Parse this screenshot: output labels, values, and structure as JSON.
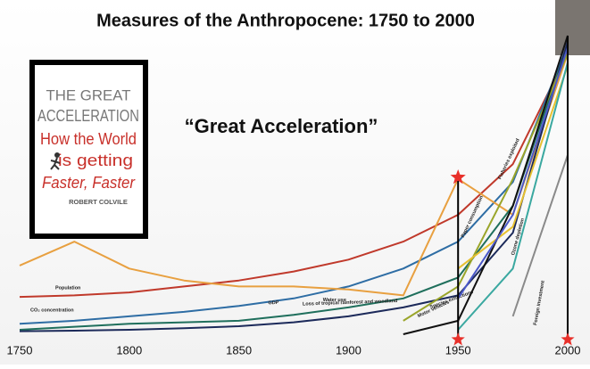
{
  "chart_data": {
    "type": "line",
    "title": "Measures of the Anthropocene:  1750 to 2000",
    "annotation": "“Great Acceleration”",
    "book": {
      "title_1": "THE GREAT",
      "title_2": "ACCELERATION",
      "subtitle_1": "How the World",
      "subtitle_2": "is getting",
      "subtitle_3": "Faster, Faster",
      "author": "ROBERT COLVILE"
    },
    "x": [
      1750,
      1775,
      1800,
      1825,
      1850,
      1875,
      1900,
      1925,
      1950,
      1975,
      2000
    ],
    "xlim": [
      1750,
      2000
    ],
    "xticks": [
      1750,
      1800,
      1850,
      1900,
      1950,
      2000
    ],
    "ylim": [
      0,
      100
    ],
    "series": [
      {
        "name": "Population",
        "color": "#c0392b",
        "values": [
          12.5,
          13,
          14,
          16,
          18,
          21,
          25,
          31,
          40,
          57,
          94
        ]
      },
      {
        "name": "CO₂ concentration",
        "color": "#2e6da4",
        "values": [
          3.5,
          4.5,
          6,
          7.5,
          9.5,
          12,
          16,
          22,
          31,
          51,
          97
        ]
      },
      {
        "name": "Water use",
        "color": "#e8a040",
        "values": [
          23,
          31,
          22,
          18,
          16,
          16,
          15,
          13,
          52,
          40,
          94
        ]
      },
      {
        "name": "Loss of tropical rainforest and woodland",
        "color": "#1f6f5c",
        "values": [
          1.5,
          2.5,
          3.5,
          4,
          4.5,
          6.5,
          9,
          12,
          19,
          43,
          97
        ]
      },
      {
        "name": "GDP",
        "color": "#1c2a5a",
        "values": [
          1,
          1.2,
          1.5,
          2,
          2.7,
          4,
          6,
          9,
          13,
          34,
          98
        ]
      },
      {
        "name": "Species extinctions",
        "color": "#9aa52a",
        "values": [
          null,
          null,
          null,
          null,
          null,
          null,
          null,
          4.5,
          16,
          52,
          94
        ]
      },
      {
        "name": "Motor vehicles",
        "color": "#111111",
        "values": [
          null,
          null,
          null,
          null,
          null,
          null,
          null,
          0,
          4.5,
          43,
          100
        ]
      },
      {
        "name": "Paper consumption",
        "color": "#e6c030",
        "values": [
          null,
          null,
          null,
          null,
          null,
          null,
          null,
          null,
          22,
          36,
          90
        ]
      },
      {
        "name": "Fisheries exploited",
        "color": "#4a58c8",
        "values": [
          null,
          null,
          null,
          null,
          null,
          null,
          null,
          null,
          12,
          40,
          96
        ]
      },
      {
        "name": "Ozone depletion",
        "color": "#3aa8a0",
        "values": [
          null,
          null,
          null,
          null,
          null,
          null,
          null,
          null,
          1.5,
          22,
          91
        ]
      },
      {
        "name": "Foreign investment",
        "color": "#8a8a8a",
        "values": [
          null,
          null,
          null,
          null,
          null,
          null,
          null,
          null,
          null,
          6,
          60
        ]
      }
    ]
  }
}
